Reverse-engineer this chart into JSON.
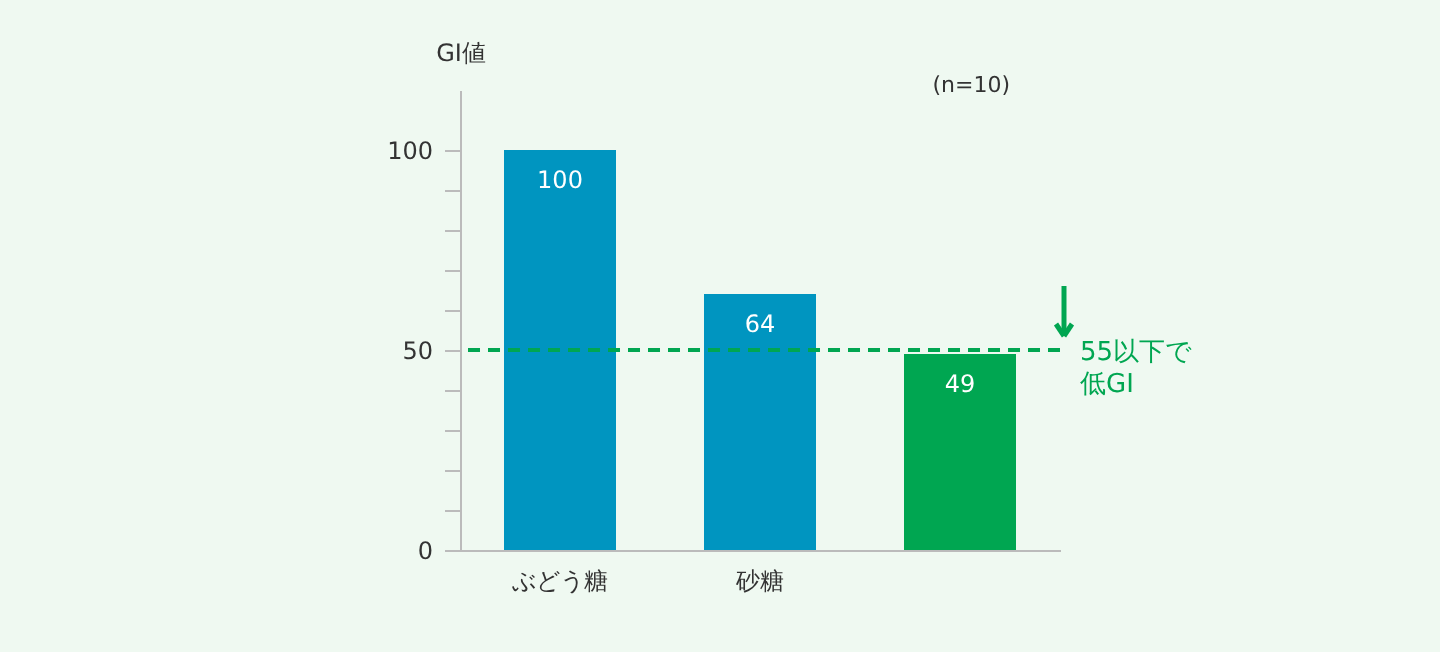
{
  "chart_data": {
    "type": "bar",
    "ylabel": "GI値",
    "categories": [
      "ぶどう糖",
      "砂糖",
      null
    ],
    "values": [
      100,
      64,
      49
    ],
    "colors": [
      "#0095c0",
      "#0095c0",
      "#00a651"
    ],
    "data_labels": true,
    "ylim": [
      0,
      115
    ],
    "yticks": [
      0,
      {
        "value": 10,
        "label": null
      },
      {
        "value": 20,
        "label": null
      },
      {
        "value": 30,
        "label": null
      },
      {
        "value": 40,
        "label": null
      },
      50,
      {
        "value": 60,
        "label": null
      },
      {
        "value": 70,
        "label": null
      },
      {
        "value": 80,
        "label": null
      },
      {
        "value": 90,
        "label": null
      },
      100
    ],
    "ref_lines": [
      {
        "axis": "y",
        "value": 50,
        "label": "55以下で低GI",
        "color": "#00a651",
        "line_style": "dashed"
      }
    ],
    "annotations": [
      "(n=10)"
    ],
    "grid": false
  }
}
